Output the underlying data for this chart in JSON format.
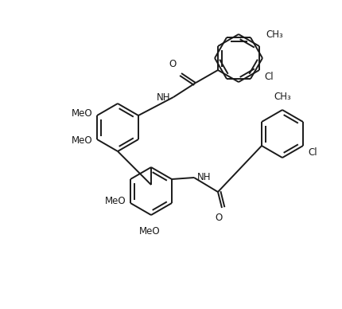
{
  "background_color": "#ffffff",
  "line_color": "#1a1a1a",
  "font_size": 8.5,
  "lw": 1.4,
  "figsize": [
    4.3,
    3.88
  ],
  "dpi": 100,
  "ring_r": 30,
  "mol_labels": {
    "MeO_top1": "MeO",
    "MeO_top2": "MeO",
    "MeO_bot1": "MeO",
    "MeO_bot2": "MeO",
    "NH_top": "NH",
    "NH_bot": "NH",
    "O_top": "O",
    "O_bot": "O",
    "Cl_top": "Cl",
    "Cl_bot": "Cl",
    "CH3_top": "CH₃",
    "CH3_bot": "CH₃"
  }
}
